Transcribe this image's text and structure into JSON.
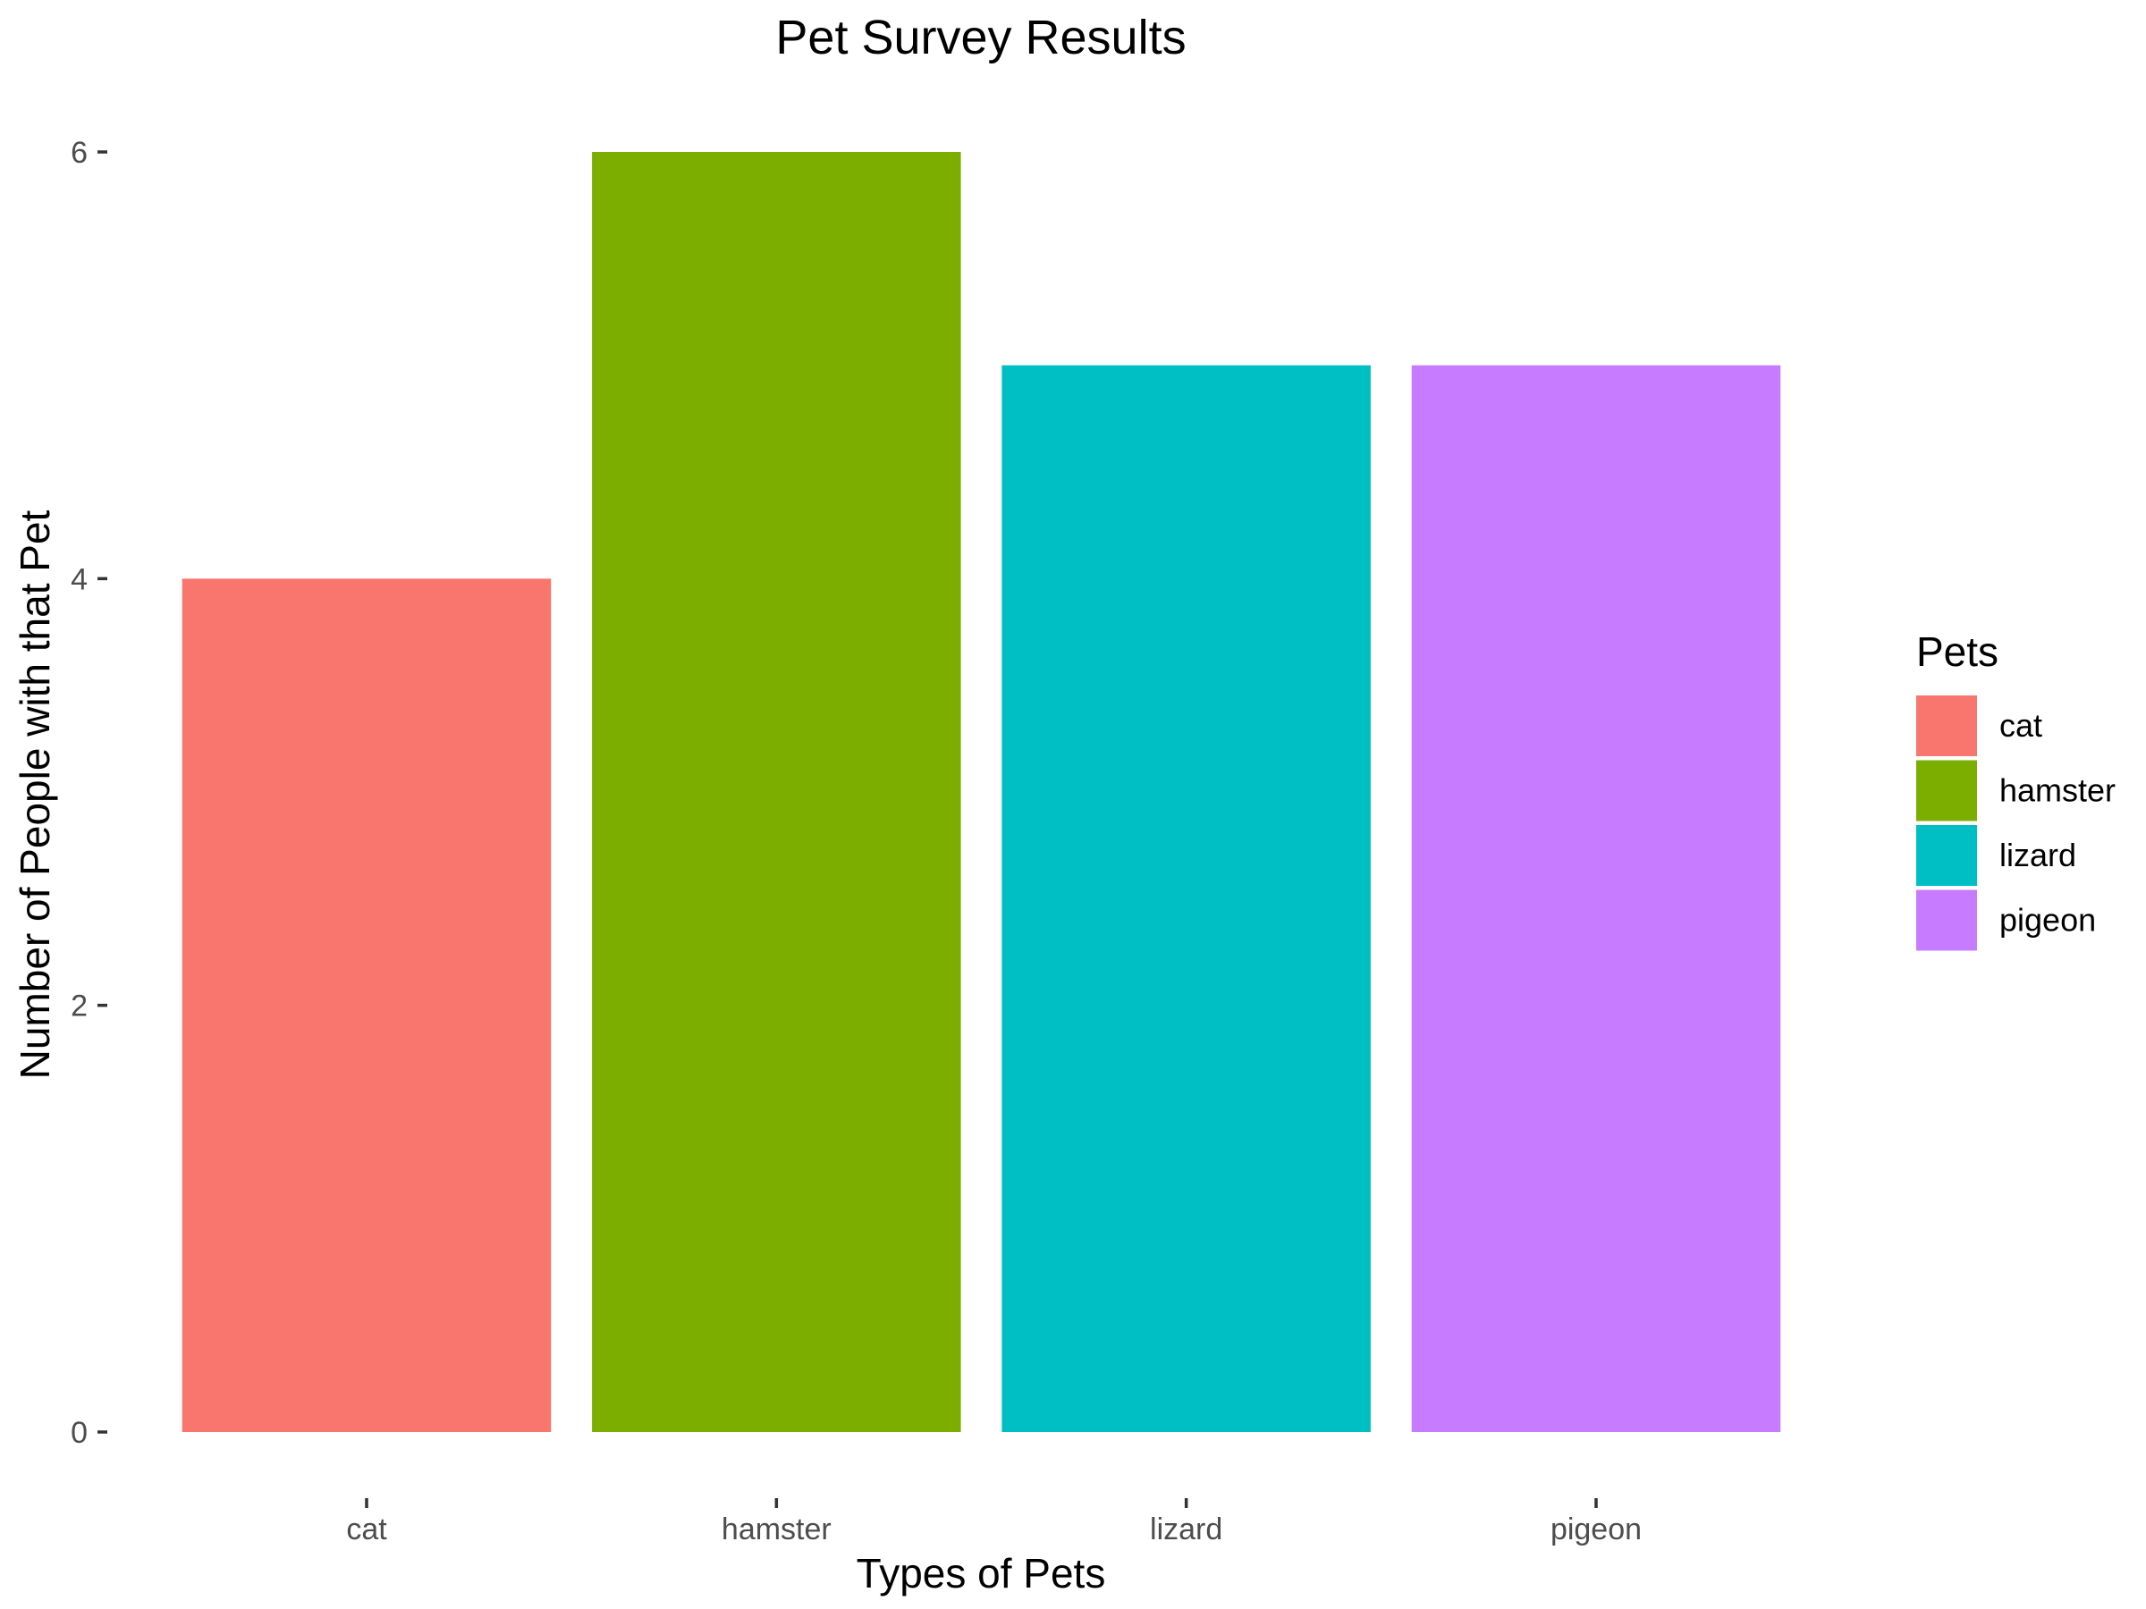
{
  "chart_data": {
    "type": "bar",
    "title": "Pet Survey Results",
    "xlabel": "Types of Pets",
    "ylabel": "Number of People with that Pet",
    "categories": [
      "cat",
      "hamster",
      "lizard",
      "pigeon"
    ],
    "values": [
      4,
      6,
      5,
      5
    ],
    "colors": [
      "#F8766D",
      "#7CAE00",
      "#00BFC4",
      "#C77CFF"
    ],
    "ylim": [
      0,
      6
    ],
    "yticks": [
      0,
      2,
      4,
      6
    ],
    "grid": false,
    "legend": {
      "title": "Pets",
      "placement": "right",
      "entries": [
        "cat",
        "hamster",
        "lizard",
        "pigeon"
      ]
    }
  }
}
